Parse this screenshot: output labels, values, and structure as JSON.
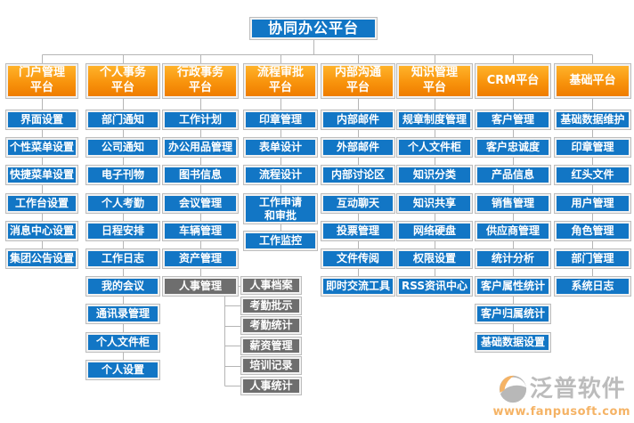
{
  "root": {
    "title": "协同办公平台"
  },
  "columns": [
    {
      "title": "门户管理\n平台",
      "items": [
        {
          "label": "界面设置"
        },
        {
          "label": "个性菜单设置"
        },
        {
          "label": "快捷菜单设置"
        },
        {
          "label": "工作台设置"
        },
        {
          "label": "消息中心设置"
        },
        {
          "label": "集团公告设置"
        }
      ]
    },
    {
      "title": "个人事务\n平台",
      "items": [
        {
          "label": "部门通知"
        },
        {
          "label": "公司通知"
        },
        {
          "label": "电子刊物"
        },
        {
          "label": "个人考勤"
        },
        {
          "label": "日程安排"
        },
        {
          "label": "工作日志"
        },
        {
          "label": "我的会议"
        },
        {
          "label": "通讯录管理"
        },
        {
          "label": "个人文件柜"
        },
        {
          "label": "个人设置"
        }
      ]
    },
    {
      "title": "行政事务\n平台",
      "items": [
        {
          "label": "工作计划"
        },
        {
          "label": "办公用品管理"
        },
        {
          "label": "图书信息"
        },
        {
          "label": "会议管理"
        },
        {
          "label": "车辆管理"
        },
        {
          "label": "资产管理"
        },
        {
          "label": "人事管理",
          "gray": true,
          "children": [
            {
              "label": "人事档案"
            },
            {
              "label": "考勤批示"
            },
            {
              "label": "考勤统计"
            },
            {
              "label": "薪资管理"
            },
            {
              "label": "培训记录"
            },
            {
              "label": "人事统计"
            }
          ]
        }
      ]
    },
    {
      "title": "流程审批\n平台",
      "items": [
        {
          "label": "印章管理"
        },
        {
          "label": "表单设计"
        },
        {
          "label": "流程设计"
        },
        {
          "label": "工作申请\n和审批",
          "tall": true
        },
        {
          "label": "工作监控"
        }
      ]
    },
    {
      "title": "内部沟通\n平台",
      "items": [
        {
          "label": "内部邮件"
        },
        {
          "label": "外部邮件"
        },
        {
          "label": "内部讨论区"
        },
        {
          "label": "互动聊天"
        },
        {
          "label": "投票管理"
        },
        {
          "label": "文件传阅"
        },
        {
          "label": "即时交流工具"
        }
      ]
    },
    {
      "title": "知识管理\n平台",
      "items": [
        {
          "label": "规章制度管理"
        },
        {
          "label": "个人文件柜"
        },
        {
          "label": "知识分类"
        },
        {
          "label": "知识共享"
        },
        {
          "label": "网络硬盘"
        },
        {
          "label": "权限设置"
        },
        {
          "label": "RSS资讯中心"
        }
      ]
    },
    {
      "title": "CRM平台",
      "items": [
        {
          "label": "客户管理"
        },
        {
          "label": "客户忠诚度"
        },
        {
          "label": "产品信息"
        },
        {
          "label": "销售管理"
        },
        {
          "label": "供应商管理"
        },
        {
          "label": "统计分析"
        },
        {
          "label": "客户属性统计"
        },
        {
          "label": "客户归属统计"
        },
        {
          "label": "基础数据设置"
        }
      ]
    },
    {
      "title": "基础平台",
      "items": [
        {
          "label": "基础数据维护"
        },
        {
          "label": "印章管理"
        },
        {
          "label": "红头文件"
        },
        {
          "label": "用户管理"
        },
        {
          "label": "角色管理"
        },
        {
          "label": "部门管理"
        },
        {
          "label": "系统日志"
        }
      ]
    }
  ],
  "watermark": {
    "name": "泛普软件",
    "url": "www.fanpusoft.com"
  },
  "colors": {
    "node_blue": "#1276c5",
    "node_gray": "#6e6e6e",
    "header_orange_top": "#ffb32a",
    "header_orange_bottom": "#ef7c00",
    "connector_gray": "#b5b5b5",
    "watermark_orange": "#ef8200",
    "watermark_gray": "#909090"
  }
}
